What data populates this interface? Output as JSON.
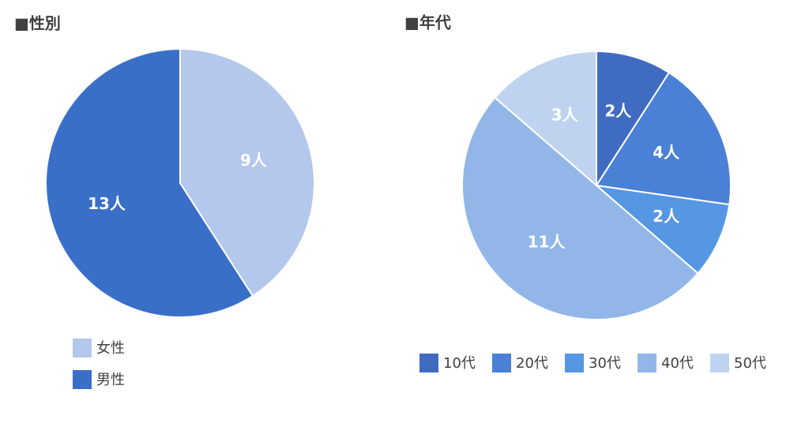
{
  "chart_data": [
    {
      "type": "pie",
      "title": "■性別",
      "categories": [
        "女性",
        "男性"
      ],
      "values": [
        9,
        13
      ],
      "value_labels": [
        "9人",
        "13人"
      ],
      "colors": [
        "#b4c7ec",
        "#3a6fc8"
      ],
      "legend": "bottom"
    },
    {
      "type": "pie",
      "title": "■年代",
      "categories": [
        "10代",
        "20代",
        "30代",
        "40代",
        "50代"
      ],
      "values": [
        2,
        4,
        2,
        11,
        3
      ],
      "value_labels": [
        "2人",
        "4人",
        "2人",
        "11人",
        "3人"
      ],
      "colors": [
        "#3f6cc0",
        "#4a80d6",
        "#5597e2",
        "#93b6e8",
        "#bfd3f1"
      ],
      "legend": "bottom"
    }
  ]
}
